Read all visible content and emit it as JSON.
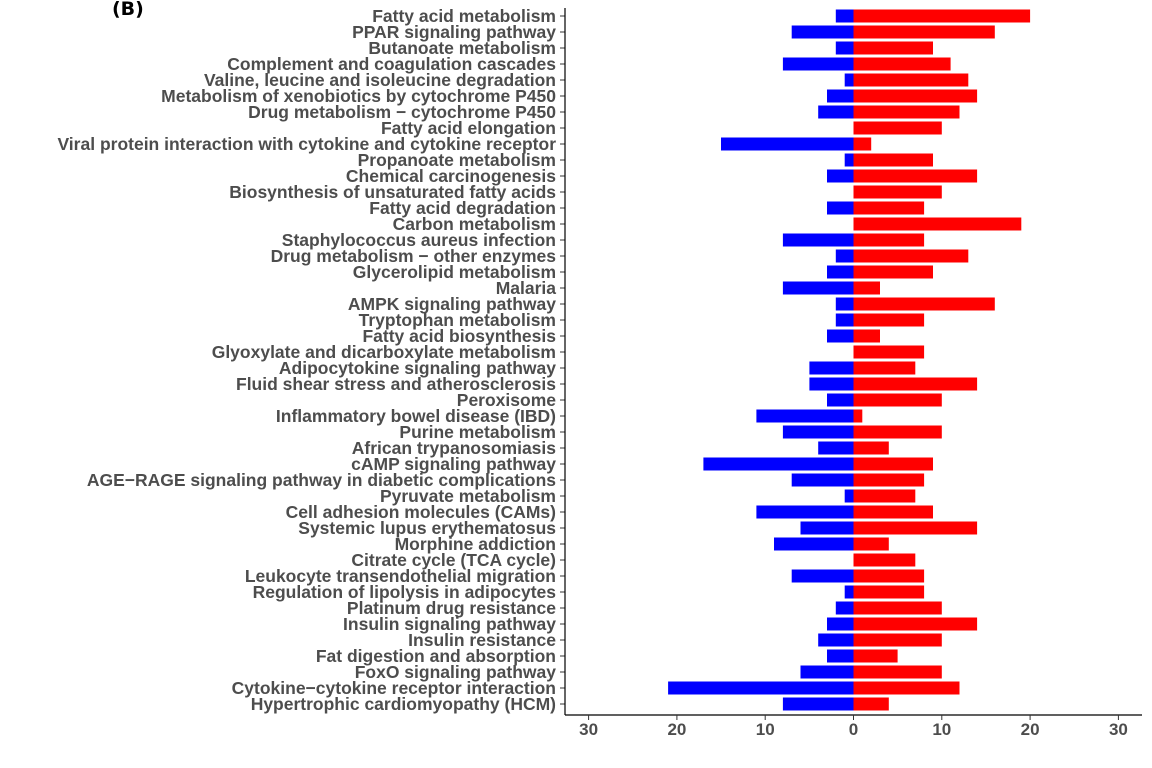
{
  "panel_label": "(B)",
  "chart_data": {
    "type": "bar",
    "orientation": "horizontal",
    "diverging": true,
    "categories": [
      "Fatty acid metabolism",
      "PPAR signaling pathway",
      "Butanoate metabolism",
      "Complement and coagulation cascades",
      "Valine, leucine and isoleucine degradation",
      "Metabolism of xenobiotics by cytochrome P450",
      "Drug metabolism − cytochrome P450",
      "Fatty acid elongation",
      "Viral protein interaction with cytokine and cytokine receptor",
      "Propanoate metabolism",
      "Chemical carcinogenesis",
      "Biosynthesis of unsaturated fatty acids",
      "Fatty acid degradation",
      "Carbon metabolism",
      "Staphylococcus aureus infection",
      "Drug metabolism − other enzymes",
      "Glycerolipid metabolism",
      "Malaria",
      "AMPK signaling pathway",
      "Tryptophan metabolism",
      "Fatty acid biosynthesis",
      "Glyoxylate and dicarboxylate metabolism",
      "Adipocytokine signaling pathway",
      "Fluid shear stress and atherosclerosis",
      "Peroxisome",
      "Inflammatory bowel disease (IBD)",
      "Purine metabolism",
      "African trypanosomiasis",
      "cAMP signaling pathway",
      "AGE−RAGE signaling pathway in diabetic complications",
      "Pyruvate metabolism",
      "Cell adhesion molecules (CAMs)",
      "Systemic lupus erythematosus",
      "Morphine addiction",
      "Citrate cycle (TCA cycle)",
      "Leukocyte transendothelial migration",
      "Regulation of lipolysis in adipocytes",
      "Platinum drug resistance",
      "Insulin signaling pathway",
      "Insulin resistance",
      "Fat digestion and absorption",
      "FoxO signaling pathway",
      "Cytokine−cytokine receptor interaction",
      "Hypertrophic cardiomyopathy (HCM)"
    ],
    "series": [
      {
        "color": "#0000ff",
        "values": [
          -2,
          -7,
          -2,
          -8,
          -1,
          -3,
          -4,
          0,
          -15,
          -1,
          -3,
          0,
          -3,
          0,
          -8,
          -2,
          -3,
          -8,
          -2,
          -2,
          -3,
          0,
          -5,
          -5,
          -3,
          -11,
          -8,
          -4,
          -17,
          -7,
          -1,
          -11,
          -6,
          -9,
          0,
          -7,
          -1,
          -2,
          -3,
          -4,
          -3,
          -6,
          -21,
          -8
        ]
      },
      {
        "color": "#ff0000",
        "values": [
          20,
          16,
          9,
          11,
          13,
          14,
          12,
          10,
          2,
          9,
          14,
          10,
          8,
          19,
          8,
          13,
          9,
          3,
          16,
          8,
          3,
          8,
          7,
          14,
          10,
          1,
          10,
          4,
          9,
          8,
          7,
          9,
          14,
          4,
          7,
          8,
          8,
          10,
          14,
          10,
          5,
          10,
          12,
          4
        ]
      }
    ],
    "x_ticks": [
      -30,
      -20,
      -10,
      0,
      10,
      20,
      30
    ],
    "x_tick_labels": [
      "30",
      "20",
      "10",
      "0",
      "10",
      "20",
      "30"
    ],
    "xlim": [
      -30,
      30
    ],
    "grid": false,
    "legend": "none"
  }
}
